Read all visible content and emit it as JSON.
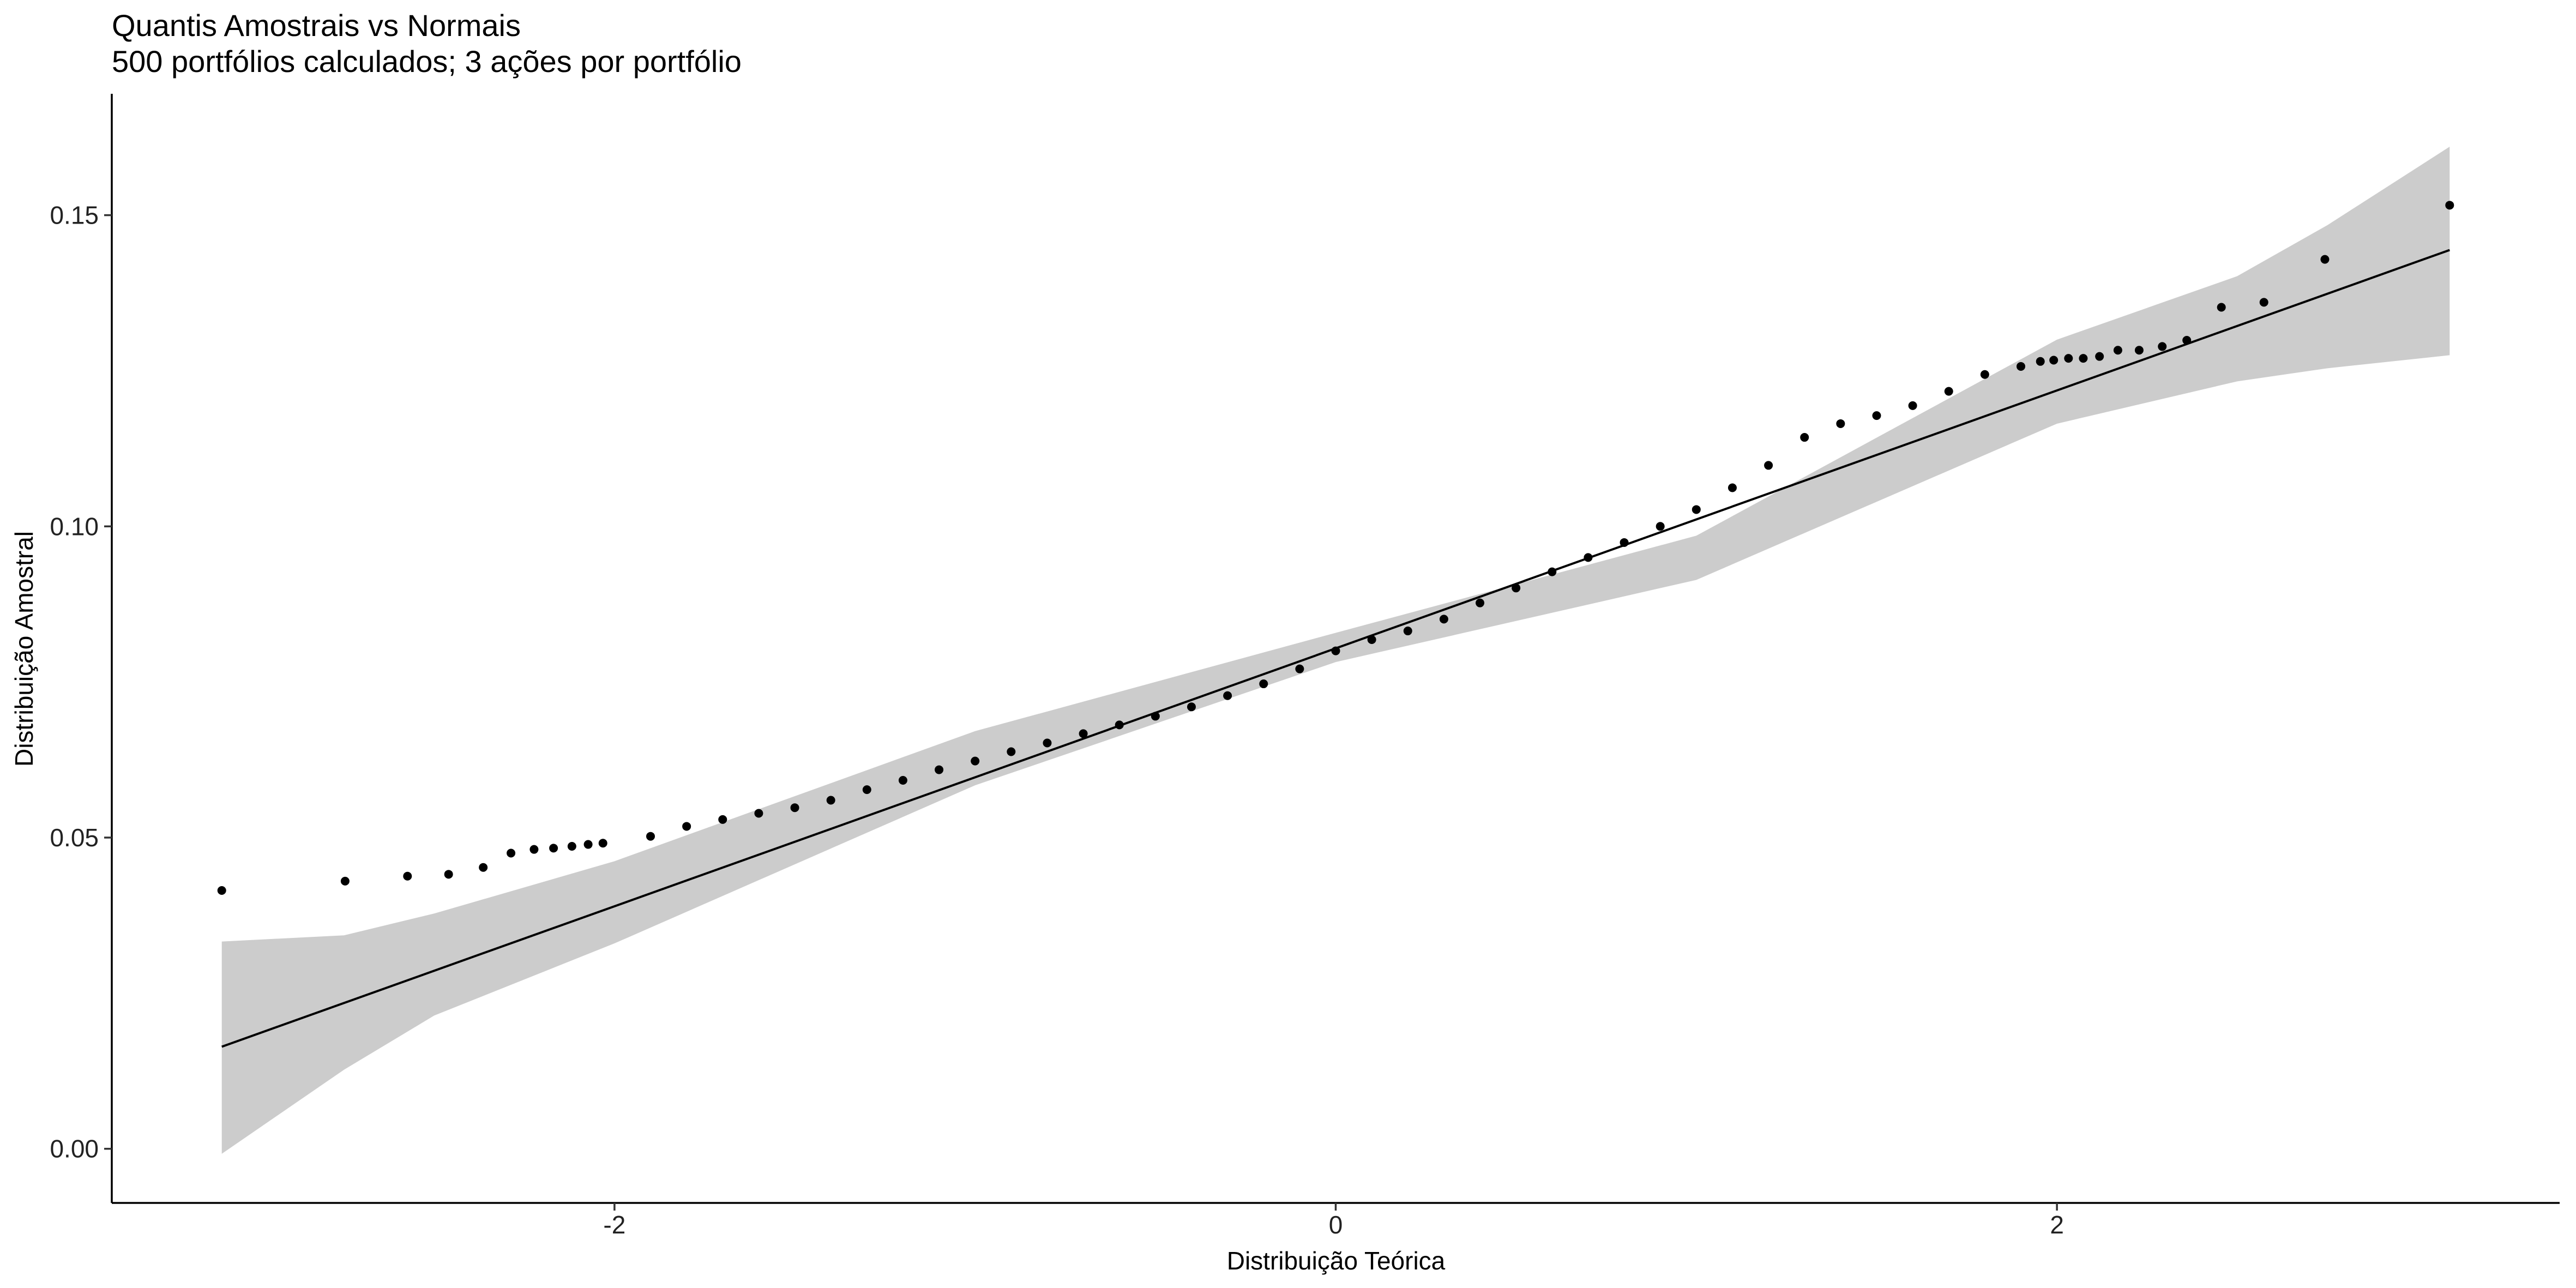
{
  "chart_data": {
    "type": "qq",
    "title": "Quantis Amostrais vs Normais",
    "subtitle": "500 portfólios calculados; 3 ações por portfólio",
    "x_label": "Distribuição Teórica",
    "y_label": "Distribuição Amostral",
    "xlim": [
      -3.394,
      3.394
    ],
    "ylim": [
      -0.0087,
      0.1695
    ],
    "xticks": [
      -2,
      0,
      2
    ],
    "yticks": [
      {
        "value": 0,
        "label": "0.00"
      },
      0.05,
      {
        "value": 0.1,
        "label": "0.10"
      },
      0.15
    ],
    "point_color": "#000000",
    "line_color": "#000000",
    "band_color": "#cccccc",
    "points": {
      "x": [
        -3.089,
        -2.747,
        -2.574,
        -2.46,
        -2.364,
        -2.287,
        -2.223,
        -2.169,
        -2.118,
        -2.073,
        -2.032,
        -1.9,
        -1.8,
        -1.7,
        -1.6,
        -1.5,
        -1.4,
        -1.3,
        -1.2,
        -1.1,
        -1.0,
        -0.9,
        -0.8,
        -0.7,
        -0.6,
        -0.5,
        -0.4,
        -0.3,
        -0.2,
        -0.1,
        0,
        0.1,
        0.2,
        0.3,
        0.4,
        0.5,
        0.6,
        0.7,
        0.8,
        0.9,
        1.0,
        1.1,
        1.2,
        1.3,
        1.4,
        1.5,
        1.6,
        1.7,
        1.8,
        1.9,
        1.954,
        1.991,
        2.032,
        2.073,
        2.118,
        2.169,
        2.228,
        2.292,
        2.36,
        2.456,
        2.574,
        2.743,
        3.089
      ],
      "y": [
        0.0415,
        0.043,
        0.0438,
        0.0441,
        0.0452,
        0.0475,
        0.0481,
        0.0483,
        0.0486,
        0.0489,
        0.0491,
        0.0502,
        0.0518,
        0.0529,
        0.0539,
        0.0548,
        0.056,
        0.0577,
        0.0592,
        0.0609,
        0.0623,
        0.0638,
        0.0652,
        0.0667,
        0.0681,
        0.0695,
        0.071,
        0.0728,
        0.0747,
        0.0771,
        0.08,
        0.0818,
        0.0832,
        0.0851,
        0.0877,
        0.0901,
        0.0927,
        0.095,
        0.0974,
        0.1,
        0.1027,
        0.1062,
        0.1098,
        0.1143,
        0.1165,
        0.1178,
        0.1194,
        0.1217,
        0.1244,
        0.1257,
        0.1265,
        0.1267,
        0.127,
        0.127,
        0.1273,
        0.1283,
        0.1283,
        0.1289,
        0.1299,
        0.1352,
        0.136,
        0.1429,
        0.1516
      ]
    },
    "band": {
      "x": [
        -3.089,
        -2.75,
        -2.5,
        -2,
        -1,
        0,
        1,
        2,
        2.5,
        2.75,
        3.089
      ],
      "lower": [
        -0.0008,
        0.0127,
        0.0214,
        0.033,
        0.0584,
        0.0782,
        0.0914,
        0.1165,
        0.1233,
        0.1254,
        0.1275
      ],
      "upper": [
        0.0333,
        0.0343,
        0.0378,
        0.0462,
        0.0671,
        0.0829,
        0.0985,
        0.13,
        0.1402,
        0.1484,
        0.161
      ]
    },
    "line": {
      "x": [
        -3.089,
        3.089
      ],
      "y": [
        0.0164,
        0.1444
      ]
    }
  }
}
